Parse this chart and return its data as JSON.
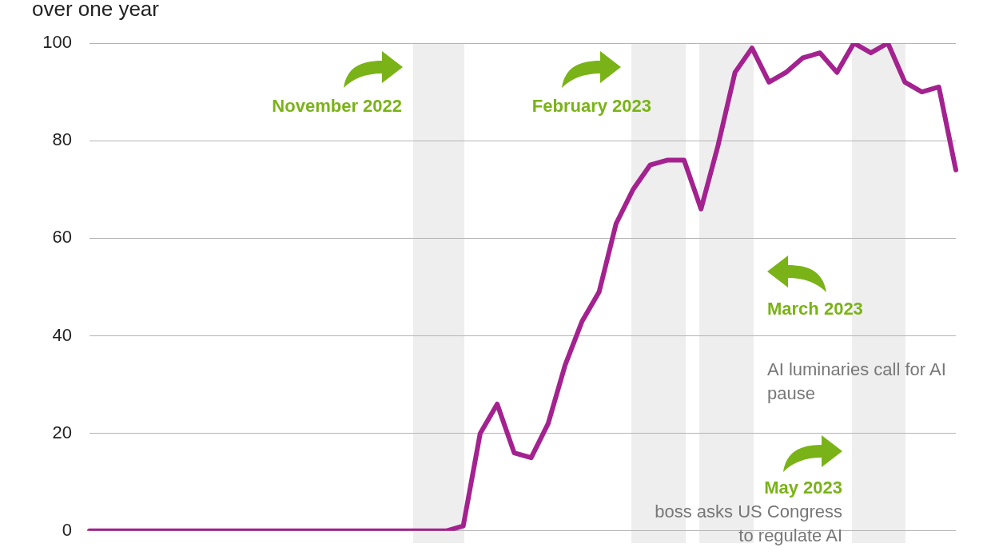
{
  "chart_data": {
    "type": "line",
    "title": "over one year",
    "categories": [
      null,
      null,
      null,
      null,
      null,
      null,
      null,
      null,
      null,
      null,
      null,
      null,
      null,
      null,
      null,
      null,
      null,
      null,
      null,
      null,
      null,
      null,
      null,
      null,
      null,
      null,
      null,
      null,
      null,
      null,
      null,
      null,
      null,
      null,
      null,
      null,
      null,
      null,
      null,
      null,
      null,
      null,
      null,
      null,
      null,
      null,
      null,
      null,
      null,
      null,
      null,
      null
    ],
    "series": [
      {
        "color": "#a4228f",
        "values": [
          0,
          0,
          0,
          0,
          0,
          0,
          0,
          0,
          0,
          0,
          0,
          0,
          0,
          0,
          0,
          0,
          0,
          0,
          0,
          0,
          0,
          0,
          1,
          20,
          26,
          16,
          15,
          22,
          34,
          43,
          49,
          63,
          70,
          75,
          76,
          76,
          66,
          79,
          94,
          99,
          92,
          94,
          97,
          98,
          94,
          100,
          98,
          100,
          92,
          90,
          91,
          74
        ]
      }
    ],
    "ylim": [
      0,
      100
    ],
    "yticks": [
      0,
      20,
      40,
      60,
      80,
      100
    ],
    "grid": "y",
    "legend": false,
    "marker": "none",
    "line_style": "solid",
    "annotations": [
      "November 2022",
      "February 2023",
      "March 2023",
      "AI luminaries call for AI pause",
      "May 2023",
      "boss asks US Congress to regulate AI"
    ]
  }
}
